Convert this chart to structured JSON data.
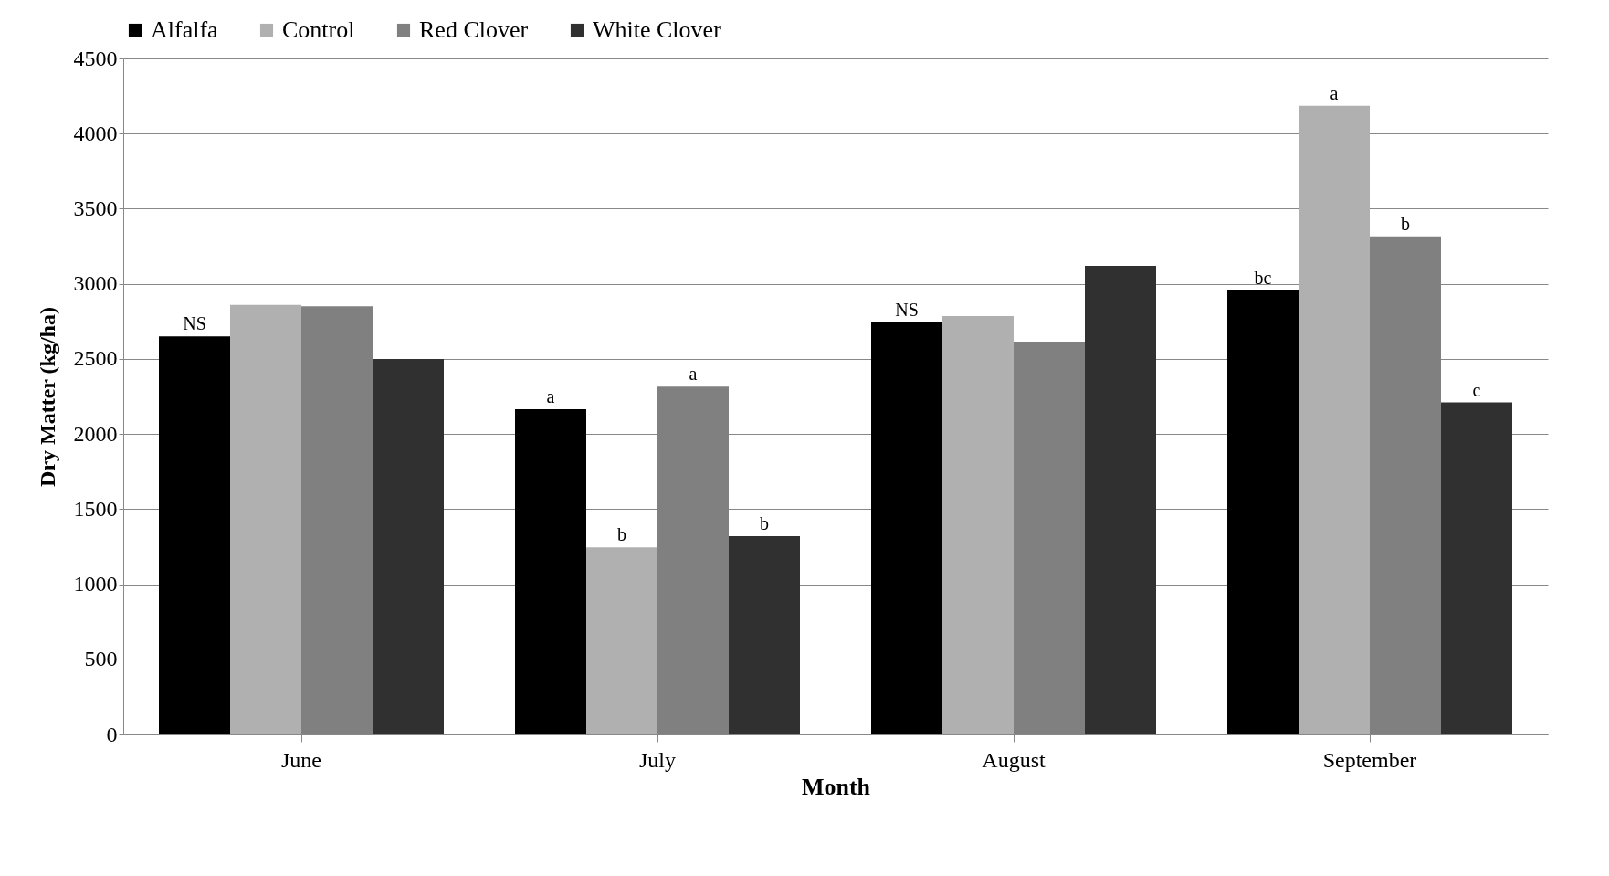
{
  "chart_data": {
    "type": "bar",
    "xlabel": "Month",
    "ylabel": "Dry Matter (kg/ha)",
    "categories": [
      "June",
      "July",
      "August",
      "September"
    ],
    "series": [
      {
        "name": "Alfalfa",
        "color": "#000000",
        "values": [
          2650,
          2165,
          2745,
          2955
        ],
        "value_labels": [
          "NS",
          "a",
          "NS",
          "bc"
        ]
      },
      {
        "name": "Control",
        "color": "#b0b0b0",
        "values": [
          2860,
          1245,
          2785,
          4185
        ],
        "value_labels": [
          null,
          "b",
          null,
          "a"
        ]
      },
      {
        "name": "Red Clover",
        "color": "#808080",
        "values": [
          2850,
          2315,
          2615,
          3315
        ],
        "value_labels": [
          null,
          "a",
          null,
          "b"
        ]
      },
      {
        "name": "White Clover",
        "color": "#303030",
        "values": [
          2500,
          1320,
          3120,
          2210
        ],
        "value_labels": [
          null,
          "b",
          null,
          "c"
        ]
      }
    ],
    "ylim": [
      0,
      4500
    ],
    "yticks": [
      0,
      500,
      1000,
      1500,
      2000,
      2500,
      3000,
      3500,
      4000,
      4500
    ],
    "grid": "y",
    "legend": "top"
  }
}
